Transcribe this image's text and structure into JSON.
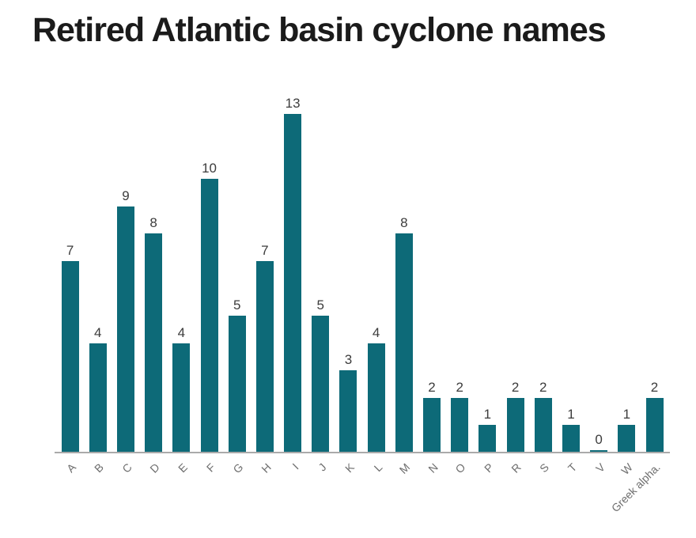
{
  "chart_data": {
    "type": "bar",
    "title": "Retired Atlantic basin cyclone names",
    "categories": [
      "A",
      "B",
      "C",
      "D",
      "E",
      "F",
      "G",
      "H",
      "I",
      "J",
      "K",
      "L",
      "M",
      "N",
      "O",
      "P",
      "R",
      "S",
      "T",
      "V",
      "W",
      "Greek alpha."
    ],
    "values": [
      7,
      4,
      9,
      8,
      4,
      10,
      5,
      7,
      13,
      5,
      3,
      4,
      8,
      2,
      2,
      1,
      2,
      2,
      1,
      0,
      1,
      2
    ],
    "xlabel": "",
    "ylabel": "",
    "ylim": [
      0,
      13
    ],
    "grid": false,
    "legend": "none",
    "bar_color": "#0d6a78",
    "value_labels_shown": true,
    "tick_label_rotation_deg": 45
  }
}
